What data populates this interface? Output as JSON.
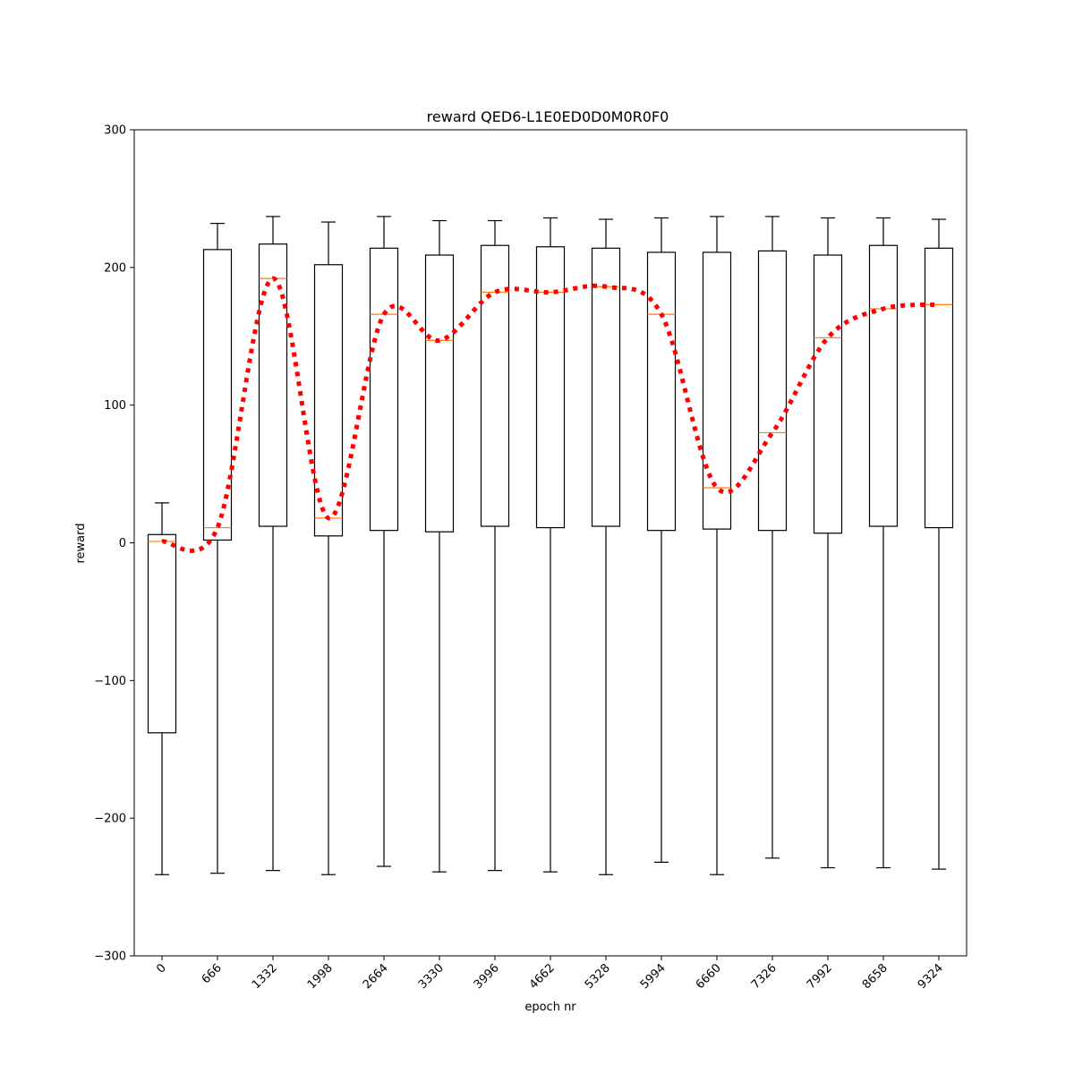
{
  "chart_data": {
    "type": "boxplot",
    "title": "reward QED6-L1E0ED0D0M0R0F0",
    "xlabel": "epoch nr",
    "ylabel": "reward",
    "ylim": [
      -300,
      300
    ],
    "yticks": [
      -300,
      -200,
      -100,
      0,
      100,
      200,
      300
    ],
    "grid": false,
    "categories": [
      "0",
      "666",
      "1332",
      "1998",
      "2664",
      "3330",
      "3996",
      "4662",
      "5328",
      "5994",
      "6660",
      "7326",
      "7992",
      "8658",
      "9324"
    ],
    "boxes": [
      {
        "whisker_low": -241,
        "q1": -138,
        "median": 1,
        "q3": 6,
        "whisker_high": 29
      },
      {
        "whisker_low": -240,
        "q1": 2,
        "median": 11,
        "q3": 213,
        "whisker_high": 232
      },
      {
        "whisker_low": -238,
        "q1": 12,
        "median": 192,
        "q3": 217,
        "whisker_high": 237
      },
      {
        "whisker_low": -241,
        "q1": 5,
        "median": 18,
        "q3": 202,
        "whisker_high": 233
      },
      {
        "whisker_low": -235,
        "q1": 9,
        "median": 166,
        "q3": 214,
        "whisker_high": 237
      },
      {
        "whisker_low": -239,
        "q1": 8,
        "median": 147,
        "q3": 209,
        "whisker_high": 234
      },
      {
        "whisker_low": -238,
        "q1": 12,
        "median": 182,
        "q3": 216,
        "whisker_high": 234
      },
      {
        "whisker_low": -239,
        "q1": 11,
        "median": 182,
        "q3": 215,
        "whisker_high": 236
      },
      {
        "whisker_low": -241,
        "q1": 12,
        "median": 186,
        "q3": 214,
        "whisker_high": 235
      },
      {
        "whisker_low": -232,
        "q1": 9,
        "median": 166,
        "q3": 211,
        "whisker_high": 236
      },
      {
        "whisker_low": -241,
        "q1": 10,
        "median": 40,
        "q3": 211,
        "whisker_high": 237
      },
      {
        "whisker_low": -229,
        "q1": 9,
        "median": 80,
        "q3": 212,
        "whisker_high": 237
      },
      {
        "whisker_low": -236,
        "q1": 7,
        "median": 149,
        "q3": 209,
        "whisker_high": 236
      },
      {
        "whisker_low": -236,
        "q1": 12,
        "median": 170,
        "q3": 216,
        "whisker_high": 236
      },
      {
        "whisker_low": -237,
        "q1": 11,
        "median": 173,
        "q3": 214,
        "whisker_high": 235
      }
    ],
    "median_line": {
      "style": "dotted",
      "color": "#ff0000",
      "values": [
        1,
        11,
        192,
        18,
        166,
        147,
        182,
        182,
        186,
        166,
        40,
        80,
        149,
        170,
        173
      ]
    },
    "colors": {
      "box": "#000000",
      "median": "#ff7f0e",
      "trend": "#ff0000"
    }
  }
}
